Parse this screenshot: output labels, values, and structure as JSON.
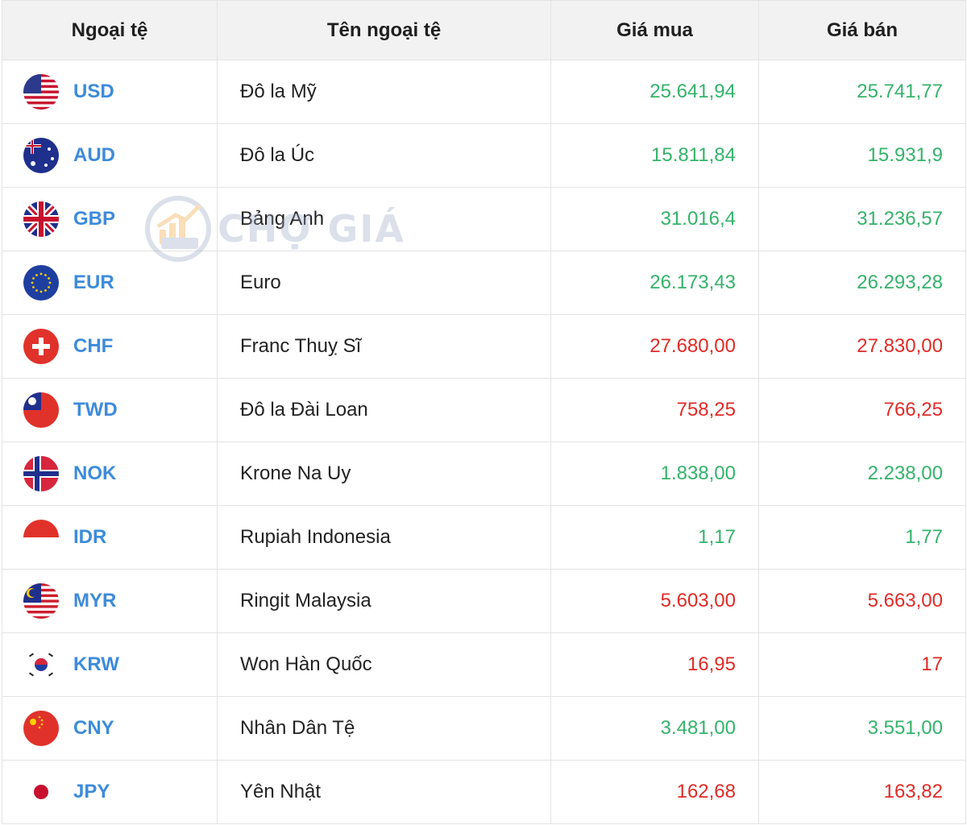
{
  "table": {
    "headers": {
      "code": "Ngoại tệ",
      "name": "Tên ngoại tệ",
      "buy": "Giá mua",
      "sell": "Giá bán"
    },
    "rows": [
      {
        "code": "USD",
        "name": "Đô la Mỹ",
        "buy": "25.641,94",
        "sell": "25.741,77",
        "trend": "up",
        "flag": "us-flag-icon"
      },
      {
        "code": "AUD",
        "name": "Đô la Úc",
        "buy": "15.811,84",
        "sell": "15.931,9",
        "trend": "up",
        "flag": "au-flag-icon"
      },
      {
        "code": "GBP",
        "name": "Bảng Anh",
        "buy": "31.016,4",
        "sell": "31.236,57",
        "trend": "up",
        "flag": "gb-flag-icon"
      },
      {
        "code": "EUR",
        "name": "Euro",
        "buy": "26.173,43",
        "sell": "26.293,28",
        "trend": "up",
        "flag": "eu-flag-icon"
      },
      {
        "code": "CHF",
        "name": "Franc Thuỵ Sĩ",
        "buy": "27.680,00",
        "sell": "27.830,00",
        "trend": "down",
        "flag": "ch-flag-icon"
      },
      {
        "code": "TWD",
        "name": "Đô la Đài Loan",
        "buy": "758,25",
        "sell": "766,25",
        "trend": "down",
        "flag": "tw-flag-icon"
      },
      {
        "code": "NOK",
        "name": "Krone Na Uy",
        "buy": "1.838,00",
        "sell": "2.238,00",
        "trend": "up",
        "flag": "no-flag-icon"
      },
      {
        "code": "IDR",
        "name": "Rupiah Indonesia",
        "buy": "1,17",
        "sell": "1,77",
        "trend": "up",
        "flag": "id-flag-icon"
      },
      {
        "code": "MYR",
        "name": "Ringit Malaysia",
        "buy": "5.603,00",
        "sell": "5.663,00",
        "trend": "down",
        "flag": "my-flag-icon"
      },
      {
        "code": "KRW",
        "name": "Won Hàn Quốc",
        "buy": "16,95",
        "sell": "17",
        "trend": "down",
        "flag": "kr-flag-icon"
      },
      {
        "code": "CNY",
        "name": "Nhân Dân Tệ",
        "buy": "3.481,00",
        "sell": "3.551,00",
        "trend": "up",
        "flag": "cn-flag-icon"
      },
      {
        "code": "JPY",
        "name": "Yên Nhật",
        "buy": "162,68",
        "sell": "163,82",
        "trend": "down",
        "flag": "jp-flag-icon"
      }
    ]
  },
  "watermark": {
    "text": "CHỢ GIÁ"
  },
  "colors": {
    "up": "#34b36a",
    "down": "#e02b27",
    "code": "#3d8bdb",
    "header_bg": "#f2f2f2"
  }
}
